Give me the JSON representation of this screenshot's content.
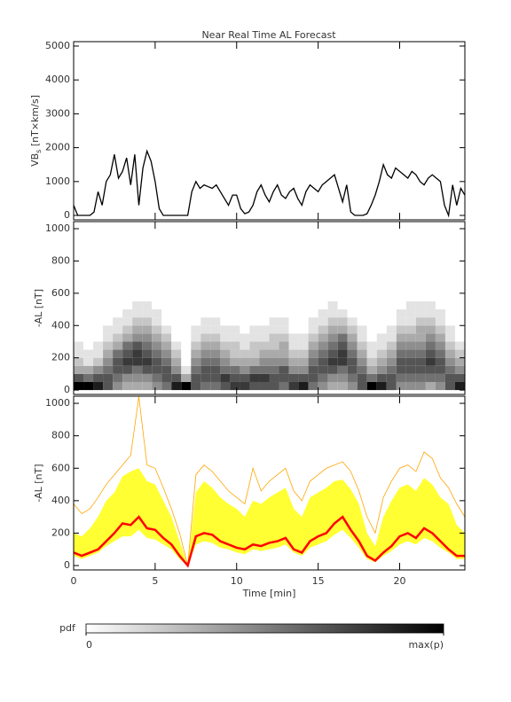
{
  "chart_data": [
    {
      "type": "line",
      "title": "Near Real Time AL Forecast",
      "ylabel_main": "VB",
      "ylabel_sub": "s",
      "ylabel_rest": " [nT×km/s]",
      "xlim": [
        0,
        24
      ],
      "xticks": [
        0,
        5,
        10,
        15,
        20
      ],
      "ylim": [
        -130,
        5130
      ],
      "yticks": [
        0,
        1000,
        2000,
        3000,
        4000,
        5000
      ],
      "x": [
        0,
        0.25,
        0.5,
        0.75,
        1,
        1.25,
        1.5,
        1.75,
        2,
        2.25,
        2.5,
        2.75,
        3,
        3.25,
        3.5,
        3.75,
        4,
        4.25,
        4.5,
        4.75,
        5,
        5.25,
        5.5,
        5.75,
        6,
        6.25,
        6.5,
        6.75,
        7,
        7.25,
        7.5,
        7.75,
        8,
        8.25,
        8.5,
        8.75,
        9,
        9.25,
        9.5,
        9.75,
        10,
        10.25,
        10.5,
        10.75,
        11,
        11.25,
        11.5,
        11.75,
        12,
        12.25,
        12.5,
        12.75,
        13,
        13.25,
        13.5,
        13.75,
        14,
        14.25,
        14.5,
        14.75,
        15,
        15.25,
        15.5,
        15.75,
        16,
        16.25,
        16.5,
        16.75,
        17,
        17.25,
        17.5,
        17.75,
        18,
        18.25,
        18.5,
        18.75,
        19,
        19.25,
        19.5,
        19.75,
        20,
        20.25,
        20.5,
        20.75,
        21,
        21.25,
        21.5,
        21.75,
        22,
        22.25,
        22.5,
        22.75,
        23,
        23.25,
        23.5,
        23.75,
        24
      ],
      "series": [
        {
          "color": "#000000",
          "values": [
            300,
            0,
            0,
            0,
            0,
            100,
            700,
            300,
            1000,
            1200,
            1800,
            1100,
            1300,
            1700,
            900,
            1800,
            300,
            1400,
            1900,
            1600,
            1000,
            200,
            0,
            0,
            0,
            0,
            0,
            0,
            0,
            700,
            1000,
            800,
            900,
            850,
            800,
            900,
            700,
            500,
            300,
            600,
            600,
            200,
            50,
            100,
            300,
            700,
            900,
            600,
            400,
            700,
            900,
            600,
            500,
            700,
            800,
            500,
            300,
            700,
            900,
            800,
            700,
            900,
            1000,
            1100,
            1200,
            800,
            400,
            900,
            100,
            0,
            0,
            0,
            50,
            300,
            600,
            1000,
            1500,
            1200,
            1100,
            1400,
            1300,
            1200,
            1100,
            1300,
            1200,
            1000,
            900,
            1100,
            1200,
            1100,
            1000,
            300,
            0,
            900,
            300,
            800,
            600
          ]
        }
      ]
    },
    {
      "type": "heatmap",
      "ylabel": "-AL [nT]",
      "xlim": [
        0,
        24
      ],
      "xticks": [
        0,
        5,
        10,
        15,
        20
      ],
      "ylim": [
        -27,
        1044
      ],
      "yticks": [
        0,
        200,
        400,
        600,
        800,
        1000
      ],
      "x_bins": [
        0,
        0.6,
        1.2,
        1.8,
        2.4,
        3,
        3.6,
        4.2,
        4.8,
        5.4,
        6,
        6.6,
        7.2,
        7.8,
        8.4,
        9,
        9.6,
        10.2,
        10.8,
        11.4,
        12,
        12.6,
        13.2,
        13.8,
        14.4,
        15,
        15.6,
        16.2,
        16.8,
        17.4,
        18,
        18.6,
        19.2,
        19.8,
        20.4,
        21,
        21.6,
        22.2,
        22.8,
        23.4,
        24
      ],
      "y_bins": [
        0,
        50,
        100,
        150,
        200,
        250,
        300,
        350,
        400,
        450,
        500,
        550,
        600
      ],
      "clim": [
        0,
        9
      ],
      "z": [
        [
          9,
          6,
          3,
          2,
          1,
          1,
          0,
          0,
          0,
          0,
          0,
          0
        ],
        [
          9,
          5,
          3,
          1,
          1,
          0,
          0,
          0,
          0,
          0,
          0,
          0
        ],
        [
          8,
          6,
          4,
          2,
          1,
          1,
          0,
          0,
          0,
          0,
          0,
          0
        ],
        [
          6,
          6,
          5,
          4,
          3,
          2,
          1,
          1,
          0,
          0,
          0,
          0
        ],
        [
          4,
          5,
          6,
          6,
          5,
          3,
          2,
          1,
          1,
          0,
          0,
          0
        ],
        [
          3,
          4,
          6,
          7,
          6,
          5,
          3,
          2,
          1,
          1,
          0,
          0
        ],
        [
          3,
          4,
          5,
          7,
          7,
          6,
          4,
          3,
          2,
          1,
          1,
          0
        ],
        [
          3,
          4,
          6,
          7,
          6,
          5,
          4,
          3,
          2,
          1,
          1,
          0
        ],
        [
          4,
          5,
          6,
          6,
          5,
          4,
          3,
          2,
          1,
          1,
          0,
          0
        ],
        [
          5,
          6,
          6,
          5,
          4,
          3,
          2,
          1,
          0,
          0,
          0,
          0
        ],
        [
          8,
          6,
          4,
          3,
          2,
          1,
          0,
          0,
          0,
          0,
          0,
          0
        ],
        [
          9,
          3,
          1,
          0,
          0,
          0,
          0,
          0,
          0,
          0,
          0,
          0
        ],
        [
          6,
          6,
          5,
          4,
          3,
          2,
          1,
          1,
          0,
          0,
          0,
          0
        ],
        [
          5,
          6,
          6,
          5,
          4,
          3,
          2,
          1,
          1,
          0,
          0,
          0
        ],
        [
          5,
          6,
          6,
          5,
          4,
          3,
          2,
          1,
          1,
          0,
          0,
          0
        ],
        [
          6,
          7,
          5,
          4,
          3,
          2,
          1,
          1,
          0,
          0,
          0,
          0
        ],
        [
          7,
          6,
          5,
          3,
          2,
          2,
          1,
          1,
          0,
          0,
          0,
          0
        ],
        [
          7,
          6,
          4,
          3,
          2,
          1,
          1,
          0,
          0,
          0,
          0,
          0
        ],
        [
          6,
          7,
          5,
          3,
          2,
          2,
          1,
          1,
          0,
          0,
          0,
          0
        ],
        [
          6,
          7,
          5,
          4,
          3,
          2,
          1,
          1,
          0,
          0,
          0,
          0
        ],
        [
          6,
          6,
          5,
          4,
          3,
          2,
          2,
          1,
          1,
          0,
          0,
          0
        ],
        [
          5,
          6,
          6,
          4,
          3,
          3,
          2,
          1,
          1,
          0,
          0,
          0
        ],
        [
          7,
          6,
          4,
          3,
          2,
          1,
          1,
          0,
          0,
          0,
          0,
          0
        ],
        [
          8,
          6,
          4,
          3,
          2,
          1,
          1,
          0,
          0,
          0,
          0,
          0
        ],
        [
          5,
          6,
          6,
          5,
          4,
          3,
          2,
          1,
          1,
          0,
          0,
          0
        ],
        [
          4,
          5,
          6,
          6,
          5,
          4,
          3,
          2,
          1,
          1,
          0,
          0
        ],
        [
          3,
          4,
          6,
          7,
          6,
          5,
          4,
          3,
          2,
          1,
          1,
          0
        ],
        [
          3,
          4,
          5,
          7,
          7,
          6,
          5,
          3,
          2,
          1,
          0,
          0
        ],
        [
          4,
          5,
          6,
          6,
          5,
          4,
          3,
          2,
          1,
          0,
          0,
          0
        ],
        [
          6,
          6,
          5,
          4,
          3,
          2,
          1,
          1,
          0,
          0,
          0,
          0
        ],
        [
          9,
          5,
          3,
          2,
          1,
          1,
          0,
          0,
          0,
          0,
          0,
          0
        ],
        [
          8,
          6,
          4,
          3,
          2,
          1,
          1,
          0,
          0,
          0,
          0,
          0
        ],
        [
          6,
          6,
          5,
          4,
          3,
          2,
          1,
          1,
          0,
          0,
          0,
          0
        ],
        [
          4,
          5,
          6,
          6,
          5,
          4,
          3,
          2,
          1,
          1,
          0,
          0
        ],
        [
          4,
          5,
          6,
          6,
          5,
          4,
          3,
          2,
          1,
          1,
          1,
          0
        ],
        [
          4,
          5,
          6,
          6,
          5,
          4,
          3,
          3,
          2,
          1,
          1,
          0
        ],
        [
          3,
          5,
          6,
          7,
          6,
          5,
          4,
          3,
          2,
          1,
          1,
          0
        ],
        [
          4,
          5,
          6,
          6,
          5,
          4,
          3,
          2,
          1,
          1,
          0,
          0
        ],
        [
          6,
          6,
          5,
          4,
          3,
          2,
          1,
          1,
          0,
          0,
          0,
          0
        ],
        [
          8,
          6,
          4,
          3,
          2,
          1,
          0,
          0,
          0,
          0,
          0,
          0
        ]
      ],
      "colorbar": {
        "label": "pdf",
        "ticks": [
          0,
          {
            "value": 9,
            "label": "max(p)"
          }
        ]
      }
    },
    {
      "type": "band",
      "ylabel": "-AL [nT]",
      "xlabel": "Time [min]",
      "xtick_labels": true,
      "xlim": [
        0,
        24
      ],
      "xticks": [
        0,
        5,
        10,
        15,
        20
      ],
      "ylim": [
        -27,
        1044
      ],
      "yticks": [
        0,
        200,
        400,
        600,
        800,
        1000
      ],
      "x": [
        0,
        0.5,
        1,
        1.5,
        2,
        2.5,
        3,
        3.5,
        4,
        4.5,
        5,
        5.5,
        6,
        6.5,
        7,
        7.5,
        8,
        8.5,
        9,
        9.5,
        10,
        10.5,
        11,
        11.5,
        12,
        12.5,
        13,
        13.5,
        14,
        14.5,
        15,
        15.5,
        16,
        16.5,
        17,
        17.5,
        18,
        18.5,
        19,
        19.5,
        20,
        20.5,
        21,
        21.5,
        22,
        22.5,
        23,
        23.5,
        24
      ],
      "band": {
        "color": "#ffff33",
        "upper": [
          200,
          180,
          230,
          300,
          400,
          450,
          550,
          580,
          600,
          520,
          500,
          400,
          300,
          150,
          0,
          450,
          520,
          480,
          420,
          380,
          350,
          300,
          400,
          380,
          420,
          450,
          480,
          350,
          300,
          420,
          450,
          480,
          520,
          530,
          470,
          380,
          200,
          120,
          300,
          400,
          480,
          500,
          460,
          540,
          500,
          420,
          380,
          250,
          200
        ],
        "lower": [
          60,
          40,
          60,
          80,
          120,
          150,
          180,
          180,
          220,
          170,
          160,
          130,
          100,
          40,
          0,
          130,
          150,
          140,
          110,
          100,
          80,
          70,
          100,
          90,
          100,
          110,
          130,
          80,
          60,
          110,
          130,
          150,
          190,
          220,
          170,
          110,
          40,
          20,
          60,
          90,
          130,
          150,
          130,
          170,
          150,
          110,
          80,
          40,
          40
        ]
      },
      "series": [
        {
          "color": "#ffa500",
          "values": [
            380,
            320,
            350,
            420,
            500,
            560,
            620,
            680,
            1040,
            620,
            600,
            480,
            350,
            200,
            0,
            560,
            620,
            580,
            520,
            460,
            420,
            380,
            600,
            460,
            520,
            560,
            600,
            460,
            400,
            520,
            560,
            600,
            620,
            640,
            580,
            460,
            300,
            200,
            420,
            520,
            600,
            620,
            580,
            700,
            660,
            540,
            480,
            380,
            300
          ]
        },
        {
          "color": "#ff0000",
          "values": [
            80,
            60,
            80,
            100,
            150,
            200,
            260,
            250,
            300,
            230,
            220,
            170,
            130,
            60,
            0,
            180,
            200,
            190,
            150,
            130,
            110,
            100,
            130,
            120,
            140,
            150,
            170,
            100,
            80,
            150,
            180,
            200,
            260,
            300,
            220,
            150,
            60,
            30,
            80,
            120,
            180,
            200,
            170,
            230,
            200,
            150,
            100,
            60,
            60
          ]
        }
      ]
    }
  ]
}
